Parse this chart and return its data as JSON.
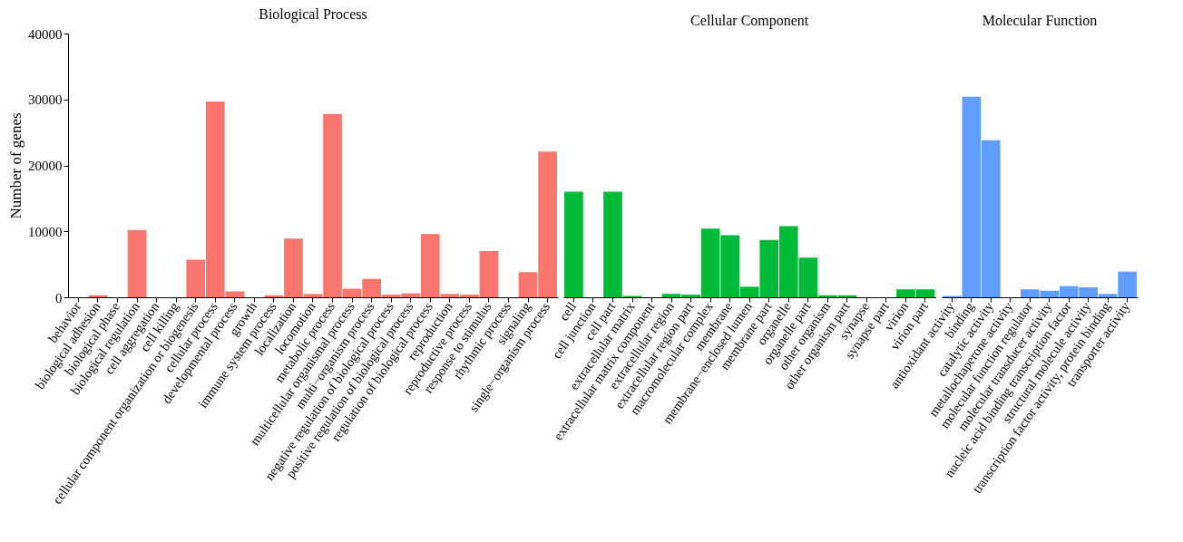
{
  "chart_data": [
    {
      "type": "bar",
      "title": "Biological Process",
      "ylabel": "Number of genes",
      "ylim": [
        0,
        40000
      ],
      "yticks": [
        0,
        10000,
        20000,
        30000,
        40000
      ],
      "color": "#f8766d",
      "categories": [
        "behavior",
        "biological adhesion",
        "biological phase",
        "biological regulation",
        "cell aggregation",
        "cell killing",
        "cellular component organization or biogenesis",
        "cellular process",
        "developmental process",
        "growth",
        "immune system process",
        "localization",
        "locomotion",
        "metabolic process",
        "multicellular organismal process",
        "multi−organism process",
        "negative regulation of biological process",
        "positive regulation of biological process",
        "regulation of biological process",
        "reproduction",
        "reproductive process",
        "response to stimulus",
        "rhythmic process",
        "signaling",
        "single−organism process"
      ],
      "values": [
        0,
        300,
        0,
        10200,
        0,
        0,
        5700,
        29700,
        900,
        0,
        300,
        8900,
        500,
        27800,
        1300,
        2800,
        400,
        600,
        9600,
        500,
        400,
        7000,
        0,
        3800,
        22100
      ]
    },
    {
      "type": "bar",
      "title": "Cellular Component",
      "ylim": [
        0,
        40000
      ],
      "yticks": [
        0,
        10000,
        20000,
        30000,
        40000
      ],
      "tick_labels": "x",
      "color": "#00ba38",
      "categories": [
        "cell",
        "cell junction",
        "cell part",
        "extracellular matrix",
        "extracellular matrix component",
        "extracellular region",
        "extracellular region part",
        "macromolecular complex",
        "membrane",
        "membrane−enclosed lumen",
        "membrane part",
        "organelle",
        "organelle part",
        "other organism",
        "other organism part",
        "synapse",
        "synapse part",
        "virion",
        "virion part"
      ],
      "values": [
        16000,
        0,
        16000,
        200,
        0,
        500,
        400,
        10400,
        9400,
        1600,
        8700,
        10800,
        6000,
        300,
        300,
        0,
        0,
        1200,
        1200
      ]
    },
    {
      "type": "bar",
      "title": "Molecular Function",
      "ylim": [
        0,
        40000
      ],
      "yticks": [
        0,
        10000,
        20000,
        30000,
        40000
      ],
      "tick_labels": "x",
      "color": "#619cff",
      "categories": [
        "antioxidant activity",
        "binding",
        "catalytic activity",
        "metallochaperone activity",
        "molecular function regulator",
        "molecular transducer activity",
        "nucleic acid binding transcription factor",
        "structural molecule activity",
        "transcription factor activity, protein binding",
        "transporter activity"
      ],
      "values": [
        200,
        30400,
        23800,
        0,
        1200,
        1000,
        1700,
        1500,
        500,
        3900
      ]
    }
  ]
}
